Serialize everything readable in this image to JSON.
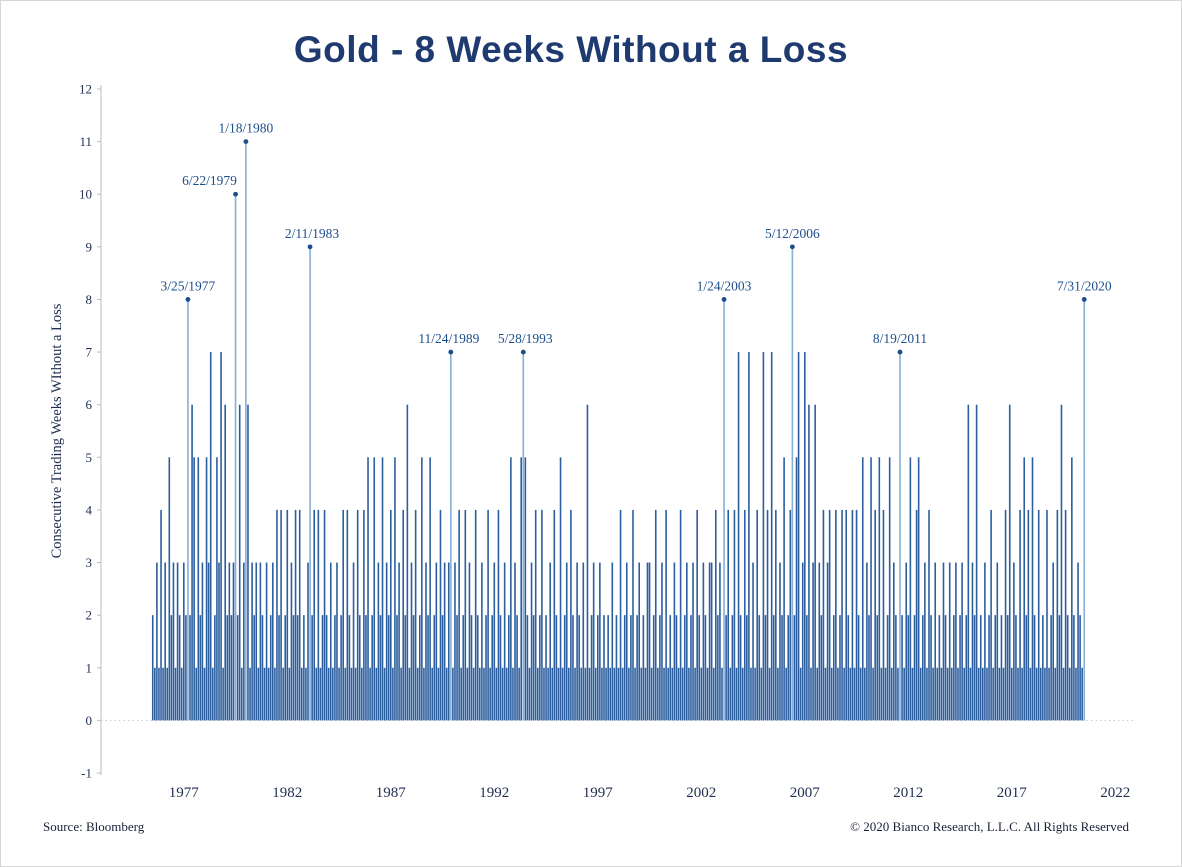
{
  "title": "Gold - 8 Weeks Without a Loss",
  "footer": {
    "source": "Source: Bloomberg",
    "copyright": "© 2020 Bianco Research, L.L.C. All Rights Reserved"
  },
  "chart_data": {
    "type": "bar",
    "title": "Gold - 8 Weeks Without a Loss",
    "xlabel": "",
    "ylabel": "Consecutive Trading Weeks WIthout a Loss",
    "ylim": [
      -1,
      12
    ],
    "y_ticks": [
      -1,
      0,
      1,
      2,
      3,
      4,
      5,
      6,
      7,
      8,
      9,
      10,
      11,
      12
    ],
    "x_domain_years": [
      1973,
      2023
    ],
    "x_ticks": [
      1977,
      1982,
      1987,
      1992,
      1997,
      2002,
      2007,
      2012,
      2017,
      2022
    ],
    "bar_start_year": 1975.5,
    "bars_per_year": 10,
    "grid": "zero-line-dotted",
    "legend": "none",
    "colors": {
      "bar": "#2d5f9f",
      "highlight_bar": "#88afd8",
      "annotation": "#1d4e8c",
      "title": "#1e3a6e"
    },
    "values": [
      2,
      1,
      3,
      1,
      4,
      1,
      3,
      1,
      5,
      2,
      3,
      1,
      3,
      2,
      1,
      3,
      2,
      8,
      2,
      6,
      5,
      1,
      5,
      2,
      3,
      1,
      5,
      3,
      7,
      1,
      2,
      5,
      3,
      7,
      1,
      6,
      2,
      3,
      2,
      3,
      10,
      2,
      6,
      1,
      3,
      11,
      6,
      1,
      3,
      2,
      3,
      1,
      3,
      2,
      1,
      3,
      1,
      2,
      3,
      1,
      4,
      2,
      4,
      1,
      2,
      4,
      1,
      3,
      2,
      4,
      2,
      4,
      1,
      2,
      1,
      3,
      9,
      2,
      4,
      1,
      4,
      1,
      2,
      4,
      2,
      1,
      3,
      1,
      2,
      3,
      1,
      2,
      4,
      1,
      4,
      2,
      1,
      3,
      1,
      4,
      2,
      1,
      4,
      2,
      5,
      1,
      2,
      5,
      1,
      3,
      2,
      5,
      1,
      3,
      2,
      4,
      1,
      5,
      2,
      3,
      1,
      4,
      2,
      6,
      1,
      3,
      2,
      4,
      1,
      2,
      5,
      1,
      3,
      2,
      5,
      1,
      2,
      3,
      1,
      4,
      2,
      3,
      1,
      3,
      7,
      1,
      3,
      2,
      4,
      1,
      2,
      4,
      1,
      3,
      2,
      1,
      4,
      2,
      1,
      3,
      1,
      2,
      4,
      1,
      2,
      3,
      1,
      4,
      2,
      1,
      3,
      1,
      2,
      5,
      1,
      3,
      2,
      1,
      5,
      7,
      5,
      2,
      1,
      3,
      2,
      4,
      1,
      2,
      4,
      1,
      2,
      1,
      3,
      1,
      4,
      2,
      1,
      5,
      1,
      2,
      3,
      1,
      4,
      2,
      1,
      3,
      2,
      1,
      3,
      1,
      6,
      1,
      2,
      3,
      1,
      2,
      3,
      1,
      2,
      1,
      2,
      1,
      3,
      1,
      2,
      1,
      4,
      1,
      2,
      3,
      1,
      2,
      4,
      1,
      2,
      3,
      1,
      2,
      1,
      3,
      3,
      1,
      2,
      4,
      1,
      2,
      3,
      1,
      4,
      1,
      2,
      1,
      3,
      2,
      1,
      4,
      1,
      2,
      3,
      1,
      2,
      3,
      1,
      4,
      2,
      1,
      3,
      2,
      1,
      3,
      3,
      1,
      4,
      2,
      3,
      1,
      8,
      2,
      4,
      1,
      2,
      4,
      1,
      7,
      2,
      1,
      4,
      2,
      7,
      1,
      3,
      1,
      4,
      2,
      1,
      7,
      2,
      4,
      1,
      7,
      2,
      4,
      1,
      3,
      2,
      5,
      1,
      2,
      4,
      9,
      2,
      5,
      7,
      1,
      3,
      7,
      2,
      6,
      1,
      3,
      6,
      1,
      3,
      2,
      4,
      1,
      3,
      4,
      1,
      2,
      4,
      1,
      2,
      4,
      1,
      4,
      2,
      1,
      4,
      1,
      4,
      2,
      1,
      5,
      1,
      3,
      2,
      5,
      1,
      4,
      2,
      5,
      1,
      4,
      1,
      2,
      5,
      1,
      3,
      2,
      1,
      7,
      2,
      1,
      3,
      2,
      5,
      1,
      2,
      4,
      5,
      1,
      2,
      3,
      1,
      4,
      2,
      1,
      3,
      1,
      2,
      1,
      3,
      2,
      1,
      3,
      1,
      2,
      3,
      1,
      2,
      3,
      1,
      2,
      6,
      1,
      3,
      2,
      6,
      1,
      2,
      1,
      3,
      1,
      2,
      4,
      1,
      2,
      3,
      1,
      2,
      1,
      4,
      2,
      6,
      1,
      3,
      2,
      1,
      4,
      1,
      5,
      2,
      4,
      1,
      5,
      2,
      1,
      4,
      1,
      2,
      1,
      4,
      1,
      2,
      3,
      1,
      4,
      2,
      6,
      1,
      4,
      2,
      1,
      5,
      2,
      1,
      3,
      2,
      1,
      8
    ],
    "annotations": [
      {
        "label": "3/25/1977",
        "value": 8,
        "index": 17,
        "dx": 0
      },
      {
        "label": "6/22/1979",
        "value": 10,
        "index": 40,
        "dx": -26
      },
      {
        "label": "1/18/1980",
        "value": 11,
        "index": 45,
        "dx": 0
      },
      {
        "label": "2/11/1983",
        "value": 9,
        "index": 76,
        "dx": 2
      },
      {
        "label": "11/24/1989",
        "value": 7,
        "index": 144,
        "dx": -2
      },
      {
        "label": "5/28/1993",
        "value": 7,
        "index": 179,
        "dx": 2
      },
      {
        "label": "1/24/2003",
        "value": 8,
        "index": 276,
        "dx": 0
      },
      {
        "label": "5/12/2006",
        "value": 9,
        "index": 309,
        "dx": 0
      },
      {
        "label": "8/19/2011",
        "value": 7,
        "index": 361,
        "dx": 0
      },
      {
        "label": "7/31/2020",
        "value": 8,
        "index": 450,
        "dx": 0
      }
    ]
  }
}
